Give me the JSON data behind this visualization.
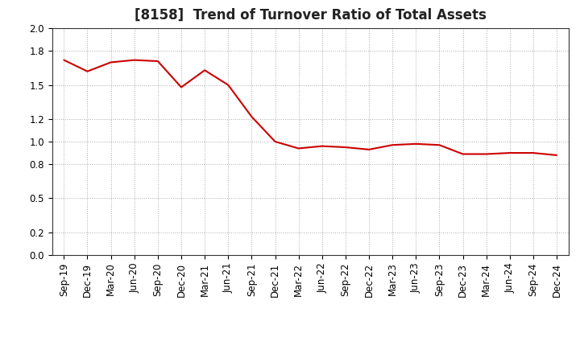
{
  "title": "[8158]  Trend of Turnover Ratio of Total Assets",
  "x_labels": [
    "Sep-19",
    "Dec-19",
    "Mar-20",
    "Jun-20",
    "Sep-20",
    "Dec-20",
    "Mar-21",
    "Jun-21",
    "Sep-21",
    "Dec-21",
    "Mar-22",
    "Jun-22",
    "Sep-22",
    "Dec-22",
    "Mar-23",
    "Jun-23",
    "Sep-23",
    "Dec-23",
    "Mar-24",
    "Jun-24",
    "Sep-24",
    "Dec-24"
  ],
  "y_values": [
    1.72,
    1.62,
    1.7,
    1.72,
    1.71,
    1.48,
    1.63,
    1.5,
    1.22,
    1.0,
    0.94,
    0.96,
    0.95,
    0.93,
    0.97,
    0.98,
    0.97,
    0.89,
    0.89,
    0.9,
    0.9,
    0.88
  ],
  "line_color": "#cc0000",
  "line_width": 1.5,
  "ylim": [
    0.0,
    2.0
  ],
  "yticks": [
    0.0,
    0.2,
    0.5,
    0.8,
    1.0,
    1.2,
    1.5,
    1.8,
    2.0
  ],
  "background_color": "#ffffff",
  "grid_color": "#aaaaaa",
  "title_fontsize": 12,
  "tick_fontsize": 8.5,
  "title_color": "#222222"
}
